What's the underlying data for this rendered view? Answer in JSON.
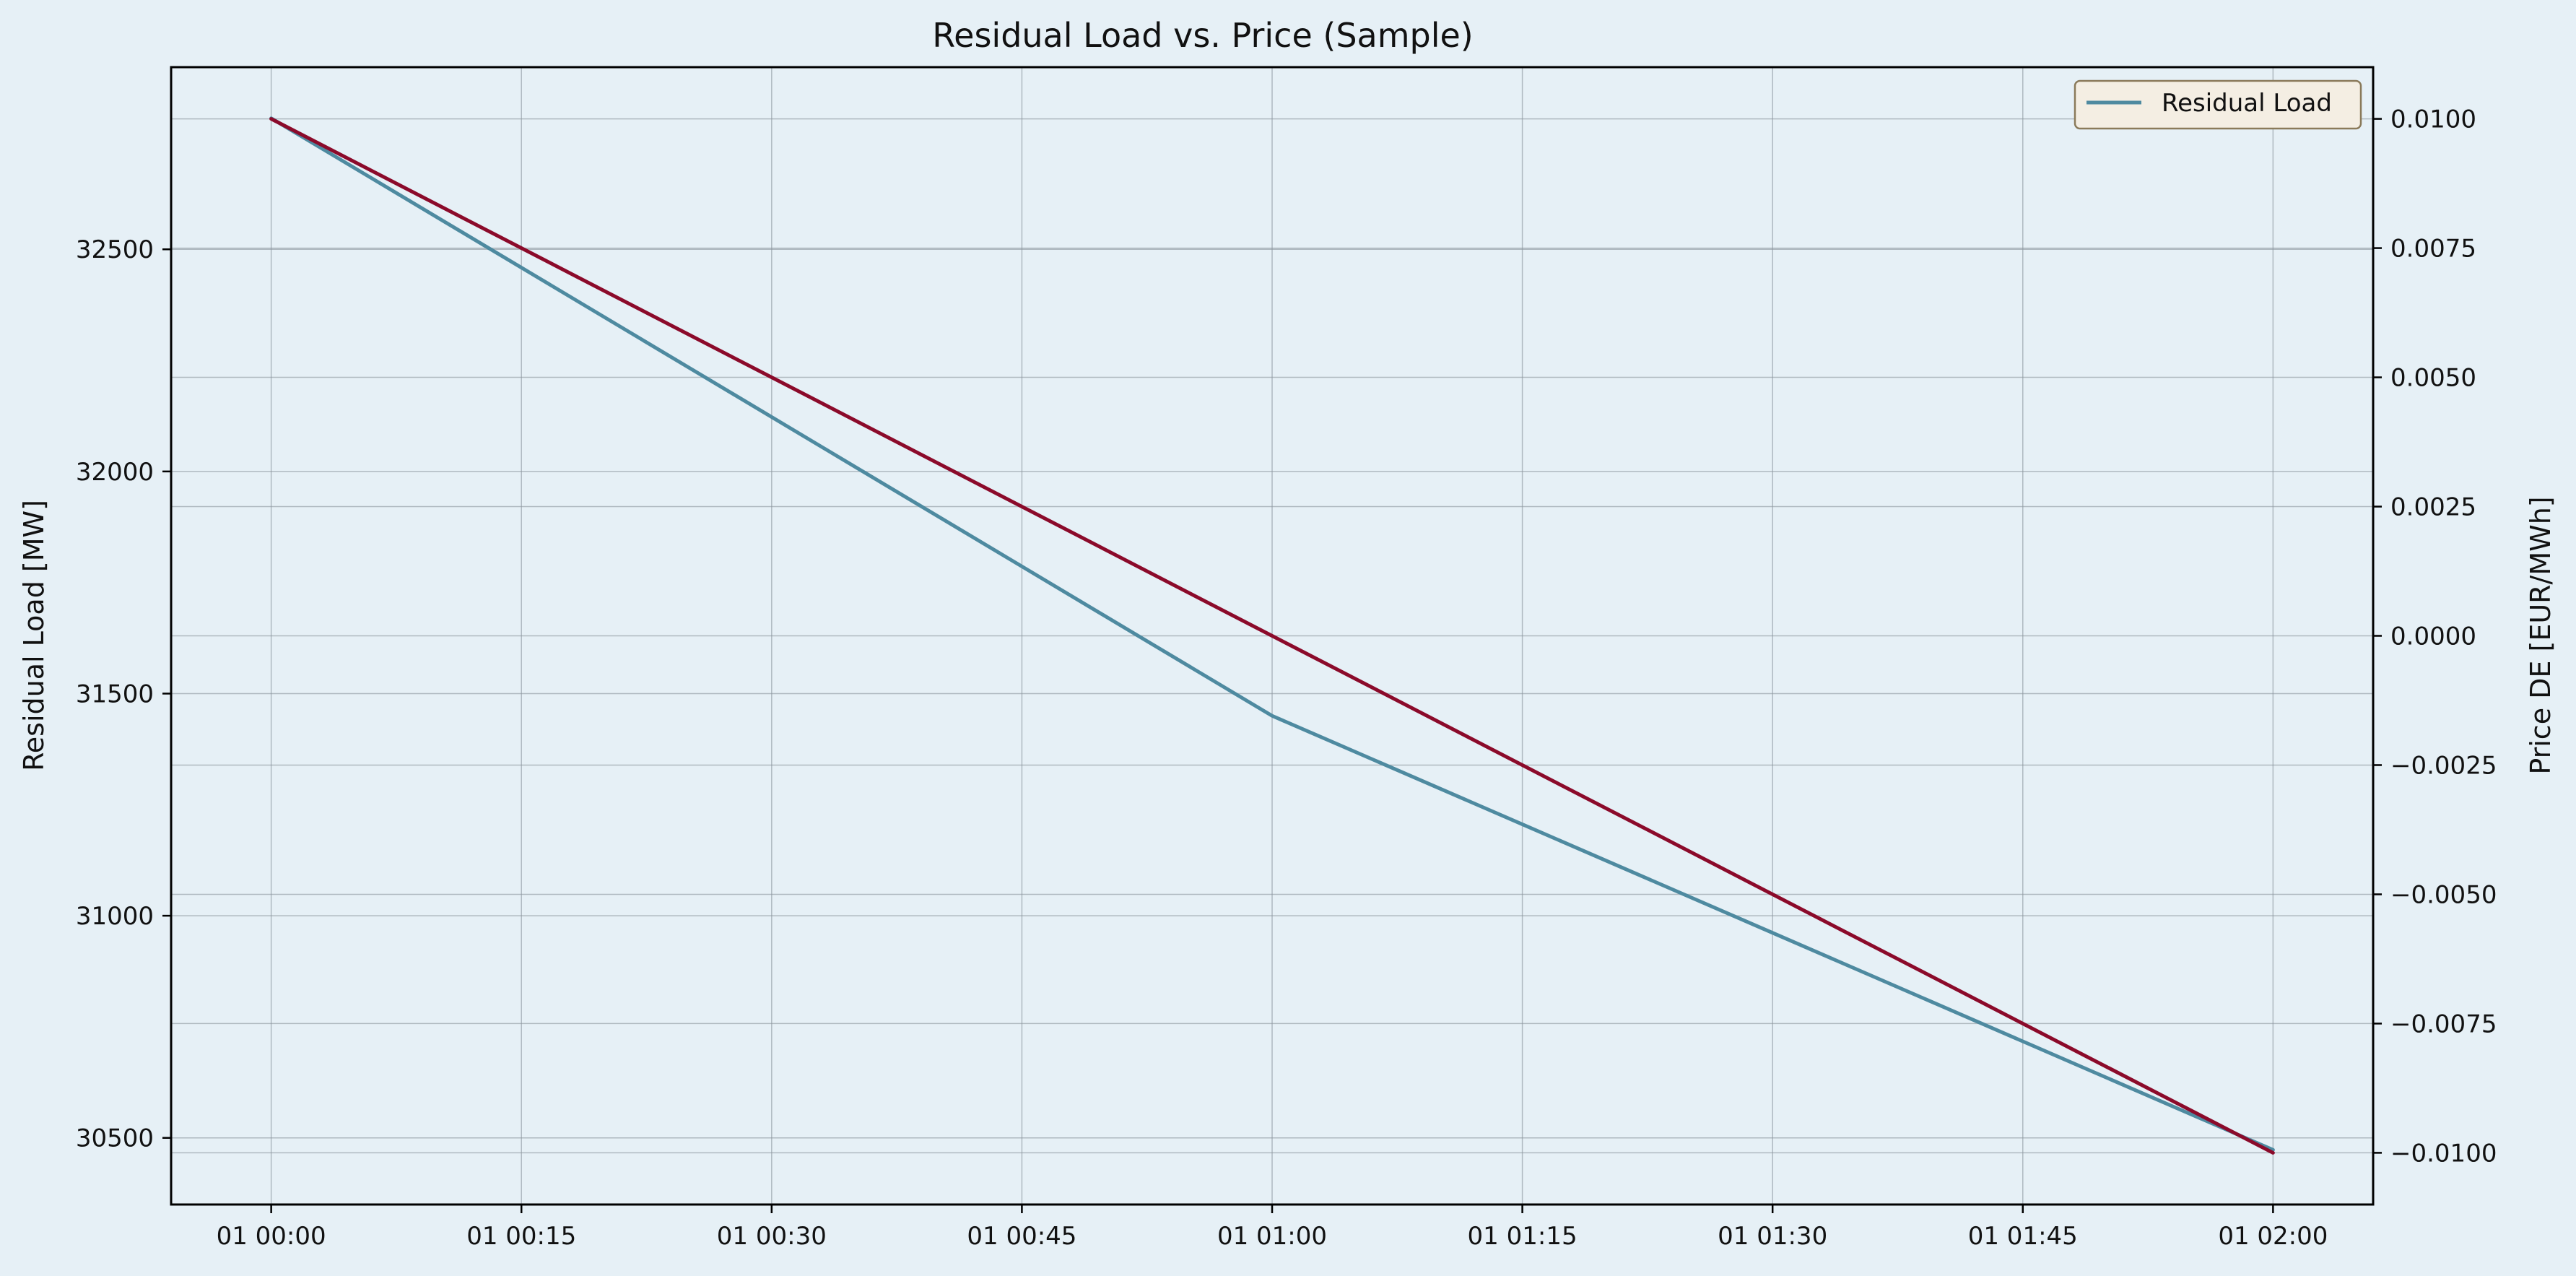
{
  "chart_data": {
    "type": "line",
    "title": "Residual Load vs. Price (Sample)",
    "x_label": "",
    "x_ticks": [
      "01 00:00",
      "01 00:15",
      "01 00:30",
      "01 00:45",
      "01 01:00",
      "01 01:15",
      "01 01:30",
      "01 01:45",
      "01 02:00"
    ],
    "x": [
      "01 00:00",
      "01 01:00",
      "01 02:00"
    ],
    "x_minutes": [
      0,
      60,
      120
    ],
    "x_range_minutes": [
      -6,
      126
    ],
    "y_left": {
      "label": "Residual Load [MW]",
      "range": [
        30350,
        32910
      ],
      "ticks": [
        30500,
        31000,
        31500,
        32000,
        32500
      ],
      "tick_labels": [
        "30500",
        "31000",
        "31500",
        "32000",
        "32500"
      ]
    },
    "y_right": {
      "label": "Price DE [EUR/MWh]",
      "range": [
        -0.011,
        0.011
      ],
      "ticks": [
        -0.01,
        -0.0075,
        -0.005,
        -0.0025,
        0.0,
        0.0025,
        0.005,
        0.0075,
        0.01
      ],
      "tick_labels": [
        "−0.0100",
        "−0.0075",
        "−0.0050",
        "−0.0025",
        "0.0000",
        "0.0025",
        "0.0050",
        "0.0075",
        "0.0100"
      ]
    },
    "series": [
      {
        "name": "Residual Load",
        "axis": "left",
        "color": "#4e8aa0",
        "values": [
          32795,
          31450,
          30473
        ]
      },
      {
        "axis": "right",
        "color": "#8b0a2a",
        "values": [
          0.01,
          0.0,
          -0.01
        ]
      }
    ],
    "legend": {
      "location": "top-right",
      "entries": [
        "Residual Load"
      ]
    },
    "grid": true,
    "colors": {
      "background": "#e6f0f6",
      "plot_background": "#e6f0f6",
      "legend_background": "#f4eee3",
      "legend_border": "#8a7a5a",
      "grid": "#8a949c"
    }
  }
}
